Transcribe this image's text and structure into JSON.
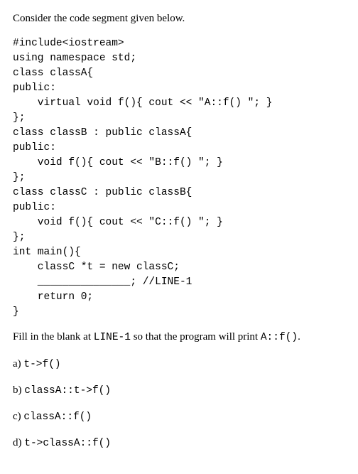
{
  "intro_text": "Consider the code segment given below.",
  "code": "#include<iostream>\nusing namespace std;\nclass classA{\npublic:\n    virtual void f(){ cout << \"A::f() \"; }\n};\nclass classB : public classA{\npublic:\n    void f(){ cout << \"B::f() \"; }\n};\nclass classC : public classB{\npublic:\n    void f(){ cout << \"C::f() \"; }\n};\nint main(){\n    classC *t = new classC;\n    _______________; //LINE-1\n    return 0;\n}",
  "question_prefix": "Fill in the blank at ",
  "question_line": "LINE-1",
  "question_mid": " so that the program will print ",
  "question_answer": "A::f()",
  "question_suffix": ".",
  "options": [
    {
      "label": "a) ",
      "code": "t->f()"
    },
    {
      "label": "b) ",
      "code": "classA::t->f()"
    },
    {
      "label": "c) ",
      "code": "classA::f()"
    },
    {
      "label": "d) ",
      "code": "t->classA::f()"
    }
  ]
}
